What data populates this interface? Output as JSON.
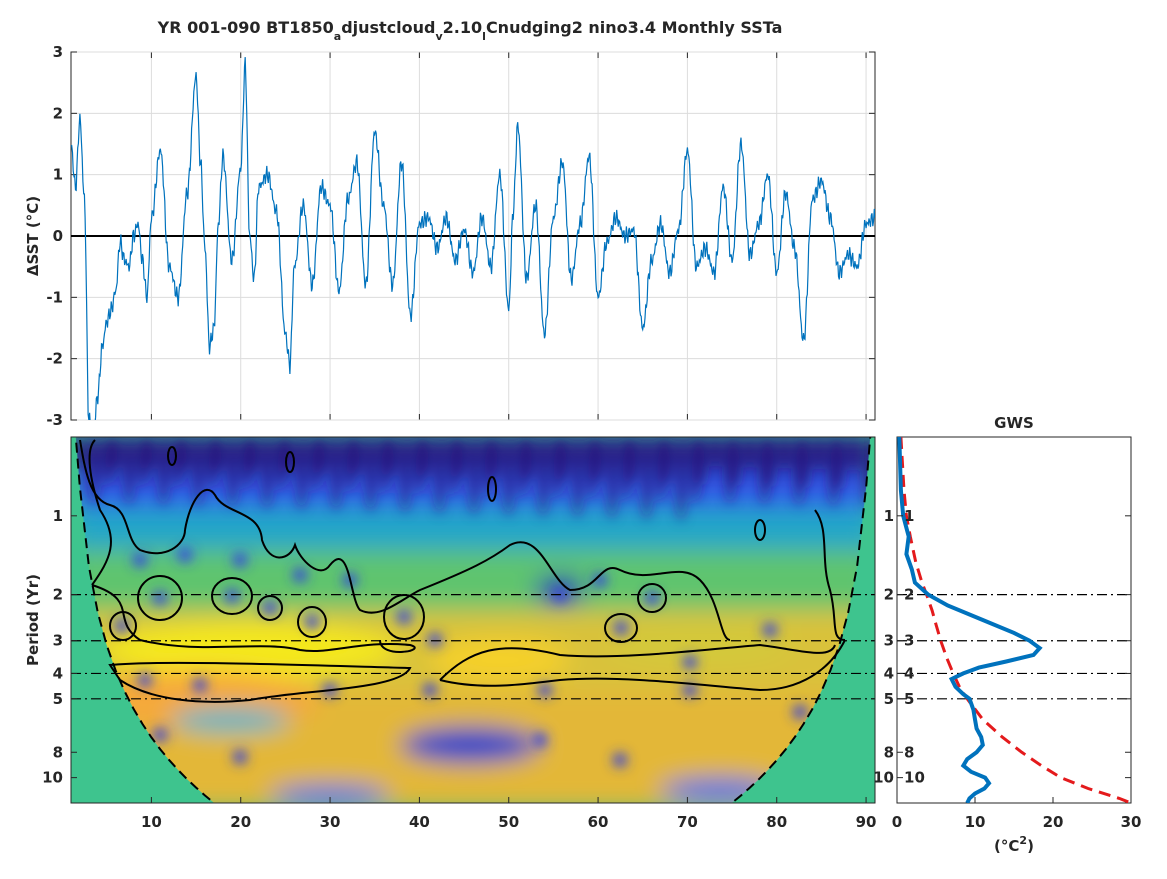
{
  "figure": {
    "title_main": "YR 001-090 BT1850",
    "title_sub1": "a",
    "title_mid1": "djustcloud",
    "title_sub2": "v",
    "title_mid2": "2.10",
    "title_sub3": "l",
    "title_end": "Cnudging2 nino3.4 Monthly SSTa"
  },
  "chart_data": [
    {
      "type": "line",
      "panel": "timeseries",
      "ylabel": "ΔSST (°C)",
      "xlim": [
        1,
        91
      ],
      "ylim": [
        -3,
        3
      ],
      "xticks": [
        10,
        20,
        30,
        40,
        50,
        60,
        70,
        80,
        90
      ],
      "yticks": [
        -3,
        -2,
        -1,
        0,
        1,
        2,
        3
      ],
      "zero_line": 0,
      "color": "#0072bd",
      "series": [
        {
          "x": [
            1,
            1.5,
            2,
            2.5,
            3,
            3.5,
            4,
            4.5,
            5,
            5.5,
            6,
            6.5,
            7,
            7.5,
            8,
            8.5,
            9,
            9.5,
            10,
            11,
            12,
            13,
            14,
            15,
            15.5,
            16,
            16.5,
            17,
            17.5,
            18,
            19,
            20,
            20.5,
            21,
            21.5,
            22,
            23,
            24,
            25,
            25.5,
            26,
            27,
            28,
            29,
            30,
            31,
            32,
            33,
            34,
            35,
            36,
            37,
            38,
            39,
            40,
            41,
            42,
            43,
            44,
            45,
            46,
            47,
            48,
            49,
            50,
            50.5,
            51,
            52,
            53,
            54,
            55,
            56,
            57,
            58,
            59,
            60,
            61,
            62,
            63,
            64,
            65,
            66,
            67,
            68,
            69,
            70,
            71,
            72,
            73,
            74,
            75,
            76,
            77,
            78,
            79,
            80,
            81,
            82,
            83,
            84,
            85,
            86,
            87,
            88,
            89,
            90,
            91
          ],
          "values": [
            1.5,
            0.8,
            1.9,
            0.6,
            -3.0,
            -3.2,
            -2.6,
            -1.8,
            -1.4,
            -1.2,
            -0.9,
            -0.1,
            -0.4,
            -0.5,
            0.0,
            0.2,
            -0.4,
            -1.0,
            0.3,
            1.4,
            -0.5,
            -1.0,
            0.7,
            2.6,
            1.2,
            -0.2,
            -1.8,
            -1.5,
            0.2,
            1.3,
            -0.4,
            1.1,
            2.8,
            0.0,
            -0.7,
            0.8,
            1.0,
            0.4,
            -1.6,
            -2.1,
            -0.5,
            0.5,
            -0.8,
            0.8,
            0.5,
            -0.9,
            0.6,
            1.2,
            -0.8,
            1.7,
            0.5,
            -0.8,
            1.2,
            -1.3,
            0.2,
            0.3,
            -0.2,
            0.3,
            -0.4,
            0.1,
            -0.6,
            0.3,
            -0.5,
            1.0,
            -1.2,
            0.4,
            1.8,
            -0.7,
            0.5,
            -1.6,
            0.3,
            1.2,
            -0.7,
            0.2,
            1.3,
            -1.0,
            -0.1,
            0.3,
            0.0,
            0.1,
            -1.5,
            -0.4,
            0.2,
            -0.6,
            0.1,
            1.4,
            -0.5,
            -0.2,
            -0.6,
            0.8,
            -0.4,
            1.5,
            -0.3,
            0.2,
            1.0,
            -0.6,
            0.7,
            -0.2,
            -1.7,
            0.6,
            0.9,
            0.3,
            -0.6,
            -0.3,
            -0.5,
            0.2,
            0.3
          ]
        }
      ]
    },
    {
      "type": "heatmap",
      "panel": "wavelet-power",
      "ylabel": "Period (Yr)",
      "xlim": [
        1,
        91
      ],
      "ylim": [
        0.5,
        12.5
      ],
      "y_scale": "log2",
      "xticks": [
        10,
        20,
        30,
        40,
        50,
        60,
        70,
        80,
        90
      ],
      "yticks": [
        1,
        2,
        3,
        4,
        5,
        8,
        10
      ],
      "reference_periods": [
        2,
        3,
        4,
        5
      ],
      "cone_of_influence": "dashed",
      "significance_contours": "solid"
    },
    {
      "type": "line",
      "panel": "global-wavelet-spectrum",
      "title": "GWS",
      "xlabel": "(°C²)",
      "xlim": [
        0,
        30
      ],
      "xticks": [
        0,
        10,
        20,
        30
      ],
      "yticks": [
        1,
        2,
        3,
        4,
        5,
        8,
        10
      ],
      "reference_periods": [
        2,
        3,
        4,
        5
      ],
      "series": [
        {
          "style": "solid",
          "color": "#0072bd",
          "period": [
            0.5,
            0.8,
            1.0,
            1.2,
            1.4,
            1.6,
            1.8,
            2.0,
            2.2,
            2.5,
            2.8,
            3.0,
            3.2,
            3.4,
            3.6,
            3.8,
            4.0,
            4.2,
            4.5,
            4.8,
            5.0,
            5.5,
            6.0,
            6.5,
            7.0,
            7.5,
            8.0,
            8.5,
            9.0,
            9.5,
            10.0,
            10.5,
            11.0,
            11.5,
            12.0,
            12.5
          ],
          "values": [
            0.3,
            0.5,
            0.8,
            1.5,
            1.2,
            1.9,
            2.3,
            4.0,
            6.5,
            11.0,
            15.0,
            17.0,
            18.3,
            17.5,
            14.0,
            10.5,
            8.5,
            7.0,
            7.5,
            8.5,
            9.3,
            9.8,
            10.0,
            10.2,
            10.8,
            11.0,
            10.2,
            9.0,
            8.5,
            9.5,
            11.3,
            11.8,
            11.2,
            10.0,
            9.3,
            9.0
          ]
        },
        {
          "style": "dashed",
          "color": "#e41a1c",
          "period": [
            0.5,
            0.8,
            1.0,
            1.2,
            1.5,
            1.8,
            2.0,
            2.3,
            2.6,
            3.0,
            3.5,
            4.0,
            4.5,
            5.0,
            6.0,
            7.0,
            8.0,
            9.0,
            10.0,
            11.0,
            12.0,
            12.5
          ],
          "values": [
            0.5,
            0.9,
            1.2,
            1.7,
            2.4,
            3.2,
            3.8,
            4.5,
            5.0,
            5.6,
            6.4,
            7.2,
            8.0,
            9.0,
            11.0,
            13.5,
            16.0,
            18.5,
            21.0,
            24.5,
            28.5,
            30.0
          ]
        }
      ]
    }
  ]
}
